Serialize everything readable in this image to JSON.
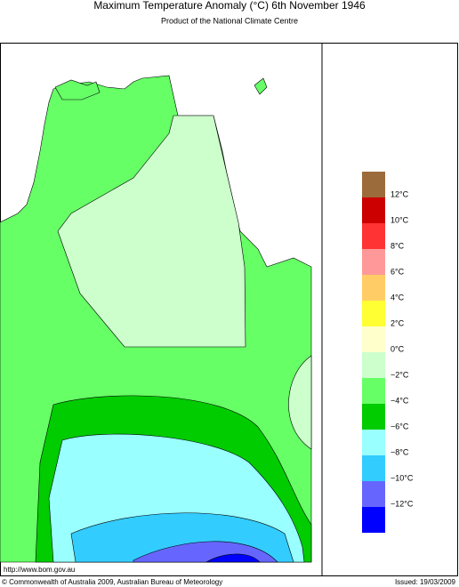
{
  "header": {
    "title": "Maximum Temperature Anomaly (°C)  6th November 1946",
    "subtitle": "Product of the National Climate Centre"
  },
  "legend": {
    "colors": [
      "#9c6b3c",
      "#cc0000",
      "#ff3333",
      "#ff9999",
      "#ffcc66",
      "#ffff33",
      "#ffffcc",
      "#ccffcc",
      "#66ff66",
      "#00cc00",
      "#99ffff",
      "#33ccff",
      "#6666ff",
      "#0000ff"
    ],
    "labels": [
      "12°C",
      "10°C",
      "8°C",
      "6°C",
      "4°C",
      "2°C",
      "0°C",
      "−2°C",
      "−4°C",
      "−6°C",
      "−8°C",
      "−10°C",
      "−12°C"
    ]
  },
  "footer": {
    "url": "http://www.bom.gov.au",
    "copyright": "© Commonwealth of Australia 2009, Australian Bureau of Meteorology",
    "issued": "Issued: 19/03/2009"
  }
}
